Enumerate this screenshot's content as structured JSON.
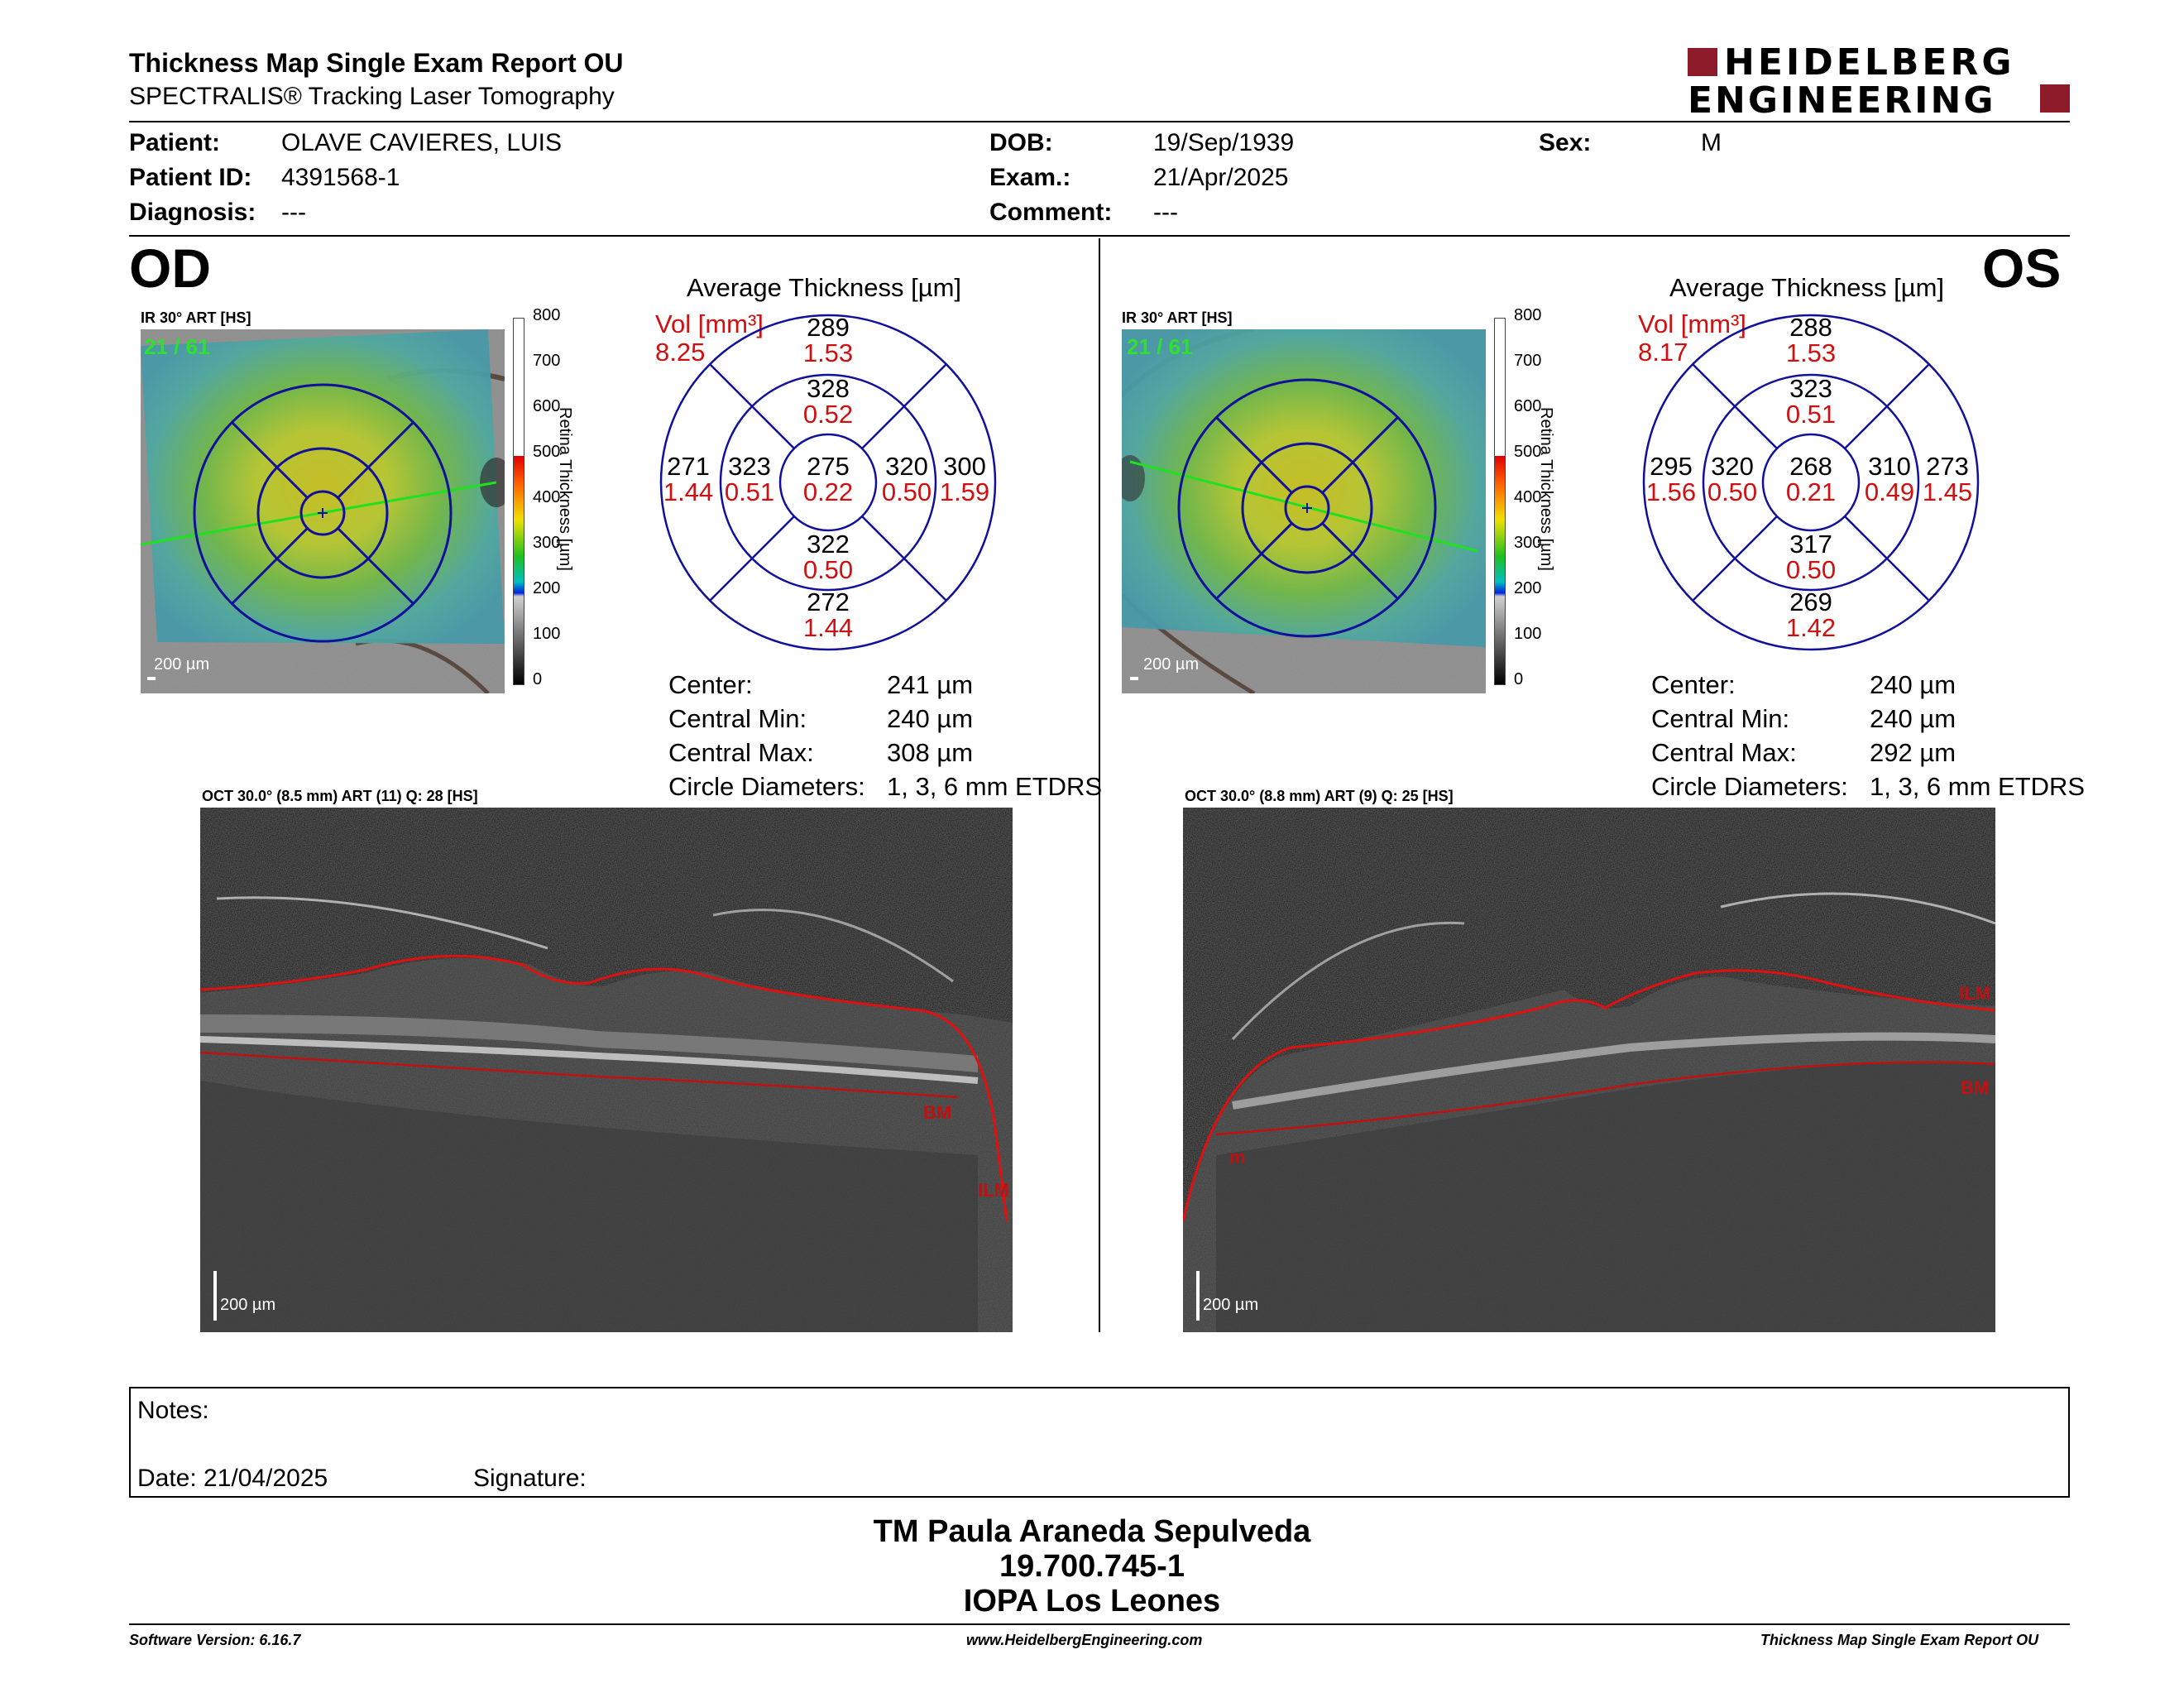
{
  "header": {
    "title": "Thickness Map Single Exam Report OU",
    "subtitle": "SPECTRALIS® Tracking Laser Tomography",
    "logo_line1": "HEIDELBERG",
    "logo_line2": "ENGINEERING"
  },
  "patient": {
    "patient_label": "Patient:",
    "patient_value": "OLAVE CAVIERES, LUIS",
    "id_label": "Patient ID:",
    "id_value": "4391568-1",
    "diagnosis_label": "Diagnosis:",
    "diagnosis_value": "---",
    "dob_label": "DOB:",
    "dob_value": "19/Sep/1939",
    "exam_label": "Exam.:",
    "exam_value": "21/Apr/2025",
    "comment_label": "Comment:",
    "comment_value": "---",
    "sex_label": "Sex:",
    "sex_value": "M"
  },
  "colorbar": {
    "ticks": [
      "800",
      "700",
      "600",
      "500",
      "400",
      "300",
      "200",
      "100",
      "0"
    ],
    "label": "Retina Thickness [µm]"
  },
  "od": {
    "eye": "OD",
    "ir_label": "IR 30° ART [HS]",
    "ir_art": "21 / 61",
    "scale": "200 µm",
    "avg_title": "Average Thickness [µm]",
    "vol_label": "Vol [mm³]",
    "vol_value": "8.25",
    "etdrs": {
      "sup_outer": "289",
      "sup_outer_vol": "1.53",
      "sup_inner": "328",
      "sup_inner_vol": "0.52",
      "temp_outer": "271",
      "temp_outer_vol": "1.44",
      "temp_inner": "323",
      "temp_inner_vol": "0.51",
      "center": "275",
      "center_vol": "0.22",
      "nas_inner": "320",
      "nas_inner_vol": "0.50",
      "nas_outer": "300",
      "nas_outer_vol": "1.59",
      "inf_inner": "322",
      "inf_inner_vol": "0.50",
      "inf_outer": "272",
      "inf_outer_vol": "1.44"
    },
    "stats": {
      "center_label": "Center:",
      "center_value": "241 µm",
      "min_label": "Central Min:",
      "min_value": "240 µm",
      "max_label": "Central Max:",
      "max_value": "308 µm",
      "circ_label": "Circle Diameters:",
      "circ_value": "1, 3, 6 mm ETDRS"
    },
    "oct_label": "OCT 30.0° (8.5 mm) ART (11) Q: 28 [HS]",
    "oct_scale": "200 µm",
    "ilm": "ILM",
    "bm": "BM"
  },
  "os": {
    "eye": "OS",
    "ir_label": "IR 30° ART [HS]",
    "ir_art": "21 / 61",
    "scale": "200 µm",
    "avg_title": "Average Thickness [µm]",
    "vol_label": "Vol [mm³]",
    "vol_value": "8.17",
    "etdrs": {
      "sup_outer": "288",
      "sup_outer_vol": "1.53",
      "sup_inner": "323",
      "sup_inner_vol": "0.51",
      "temp_outer": "295",
      "temp_outer_vol": "1.56",
      "temp_inner": "320",
      "temp_inner_vol": "0.50",
      "center": "268",
      "center_vol": "0.21",
      "nas_inner": "310",
      "nas_inner_vol": "0.49",
      "nas_outer": "273",
      "nas_outer_vol": "1.45",
      "inf_inner": "317",
      "inf_inner_vol": "0.50",
      "inf_outer": "269",
      "inf_outer_vol": "1.42"
    },
    "stats": {
      "center_label": "Center:",
      "center_value": "240 µm",
      "min_label": "Central Min:",
      "min_value": "240 µm",
      "max_label": "Central Max:",
      "max_value": "292 µm",
      "circ_label": "Circle Diameters:",
      "circ_value": "1, 3, 6 mm ETDRS"
    },
    "oct_label": "OCT 30.0° (8.8 mm) ART (9) Q: 25 [HS]",
    "oct_scale": "200 µm",
    "ilm": "ILM",
    "bm": "BM",
    "extra_mark": "m"
  },
  "notes": {
    "notes_label": "Notes:",
    "date_label": "Date: 21/04/2025",
    "signature_label": "Signature:"
  },
  "signer": {
    "name": "TM Paula Araneda Sepulveda",
    "id": "19.700.745-1",
    "org": "IOPA Los Leones"
  },
  "footer": {
    "software": "Software Version: 6.16.7",
    "website": "www.HeidelbergEngineering.com",
    "report": "Thickness Map Single Exam Report OU"
  }
}
